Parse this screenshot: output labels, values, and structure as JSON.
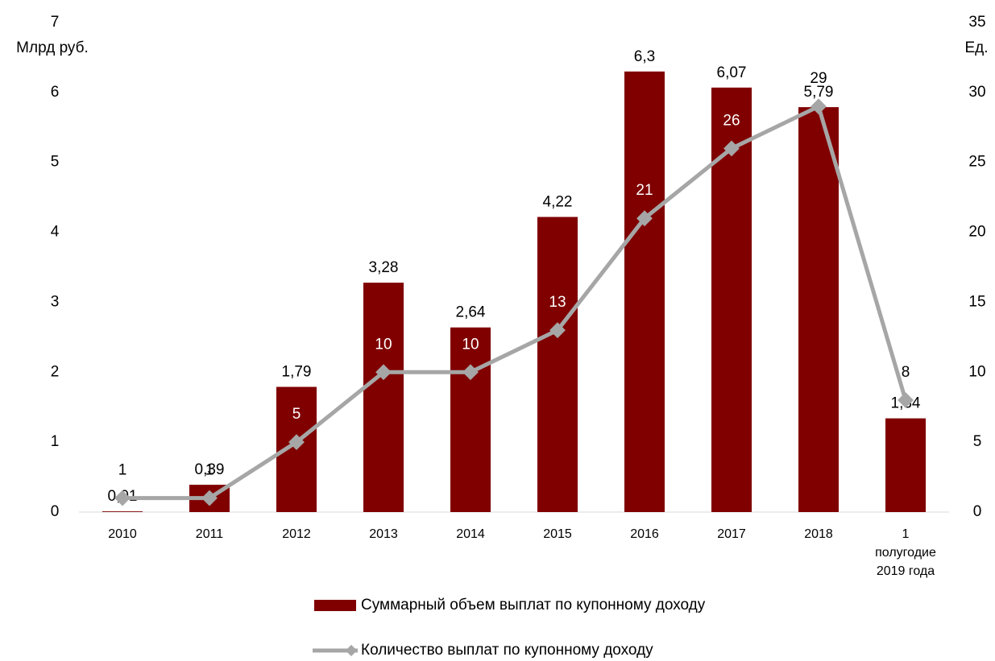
{
  "chart_data": {
    "type": "bar_line",
    "y_label": "Млрд руб.",
    "y2_label": "Ед.",
    "categories": [
      "2010",
      "2011",
      "2012",
      "2013",
      "2014",
      "2015",
      "2016",
      "2017",
      "2018",
      "1\nполугодие\n2019 года"
    ],
    "series": [
      {
        "name": "Суммарный объем выплат по купонному доходу",
        "type": "bar",
        "color": "#800000",
        "values": [
          0.01,
          0.39,
          1.79,
          3.28,
          2.64,
          4.22,
          6.3,
          6.07,
          5.79,
          1.34
        ],
        "value_labels": [
          "0,01",
          "0,39",
          "1,79",
          "3,28",
          "2,64",
          "4,22",
          "6,3",
          "6,07",
          "5,79",
          "1,34"
        ]
      },
      {
        "name": "Количество выплат по купонному доходу",
        "type": "line",
        "color": "#a6a6a6",
        "axis": "y2",
        "values": [
          1,
          1,
          5,
          10,
          10,
          13,
          21,
          26,
          29,
          8
        ]
      }
    ],
    "ylim": [
      0,
      7
    ],
    "yticks": [
      0,
      1,
      2,
      3,
      4,
      5,
      6,
      7
    ],
    "y2lim": [
      0,
      35
    ],
    "y2ticks": [
      0,
      5,
      10,
      15,
      20,
      25,
      30,
      35
    ]
  }
}
